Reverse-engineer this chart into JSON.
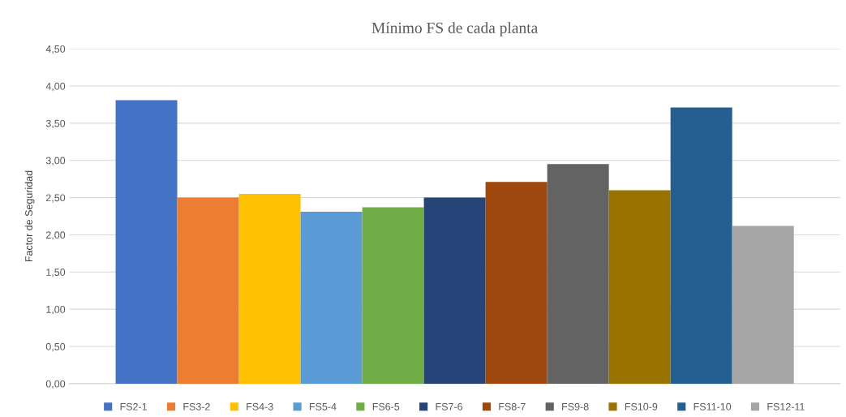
{
  "chart_data": {
    "type": "bar",
    "title": "Mínimo FS de cada planta",
    "ylabel": "Factor de Seguridad",
    "categories": [
      null
    ],
    "series": [
      {
        "name": "FS2-1",
        "color": "#4472c4",
        "values": [
          3.81
        ]
      },
      {
        "name": "FS3-2",
        "color": "#ed7d31",
        "values": [
          2.5
        ]
      },
      {
        "name": "FS4-3",
        "color": "#ffc000",
        "values": [
          2.55
        ]
      },
      {
        "name": "FS5-4",
        "color": "#5b9bd5",
        "values": [
          2.31
        ]
      },
      {
        "name": "FS6-5",
        "color": "#70ad47",
        "values": [
          2.37
        ]
      },
      {
        "name": "FS7-6",
        "color": "#264478",
        "values": [
          2.5
        ]
      },
      {
        "name": "FS8-7",
        "color": "#9e480e",
        "values": [
          2.71
        ]
      },
      {
        "name": "FS9-8",
        "color": "#636363",
        "values": [
          2.95
        ]
      },
      {
        "name": "FS10-9",
        "color": "#997300",
        "values": [
          2.6
        ]
      },
      {
        "name": "FS11-10",
        "color": "#255e91",
        "values": [
          3.71
        ]
      },
      {
        "name": "FS12-11",
        "color": "#a5a5a5",
        "values": [
          2.12
        ]
      }
    ],
    "ylim": [
      0,
      4.5
    ],
    "yticks": [
      {
        "value": 0,
        "label": "0,00"
      },
      {
        "value": 0.5,
        "label": "0,50"
      },
      {
        "value": 1,
        "label": "1,00"
      },
      {
        "value": 1.5,
        "label": "1,50"
      },
      {
        "value": 2,
        "label": "2,00"
      },
      {
        "value": 2.5,
        "label": "2,50"
      },
      {
        "value": 3,
        "label": "3,00"
      },
      {
        "value": 3.5,
        "label": "3,50"
      },
      {
        "value": 4,
        "label": "4,00"
      },
      {
        "value": 4.5,
        "label": "4,50"
      }
    ],
    "grid": "y",
    "legend": "bottom"
  }
}
